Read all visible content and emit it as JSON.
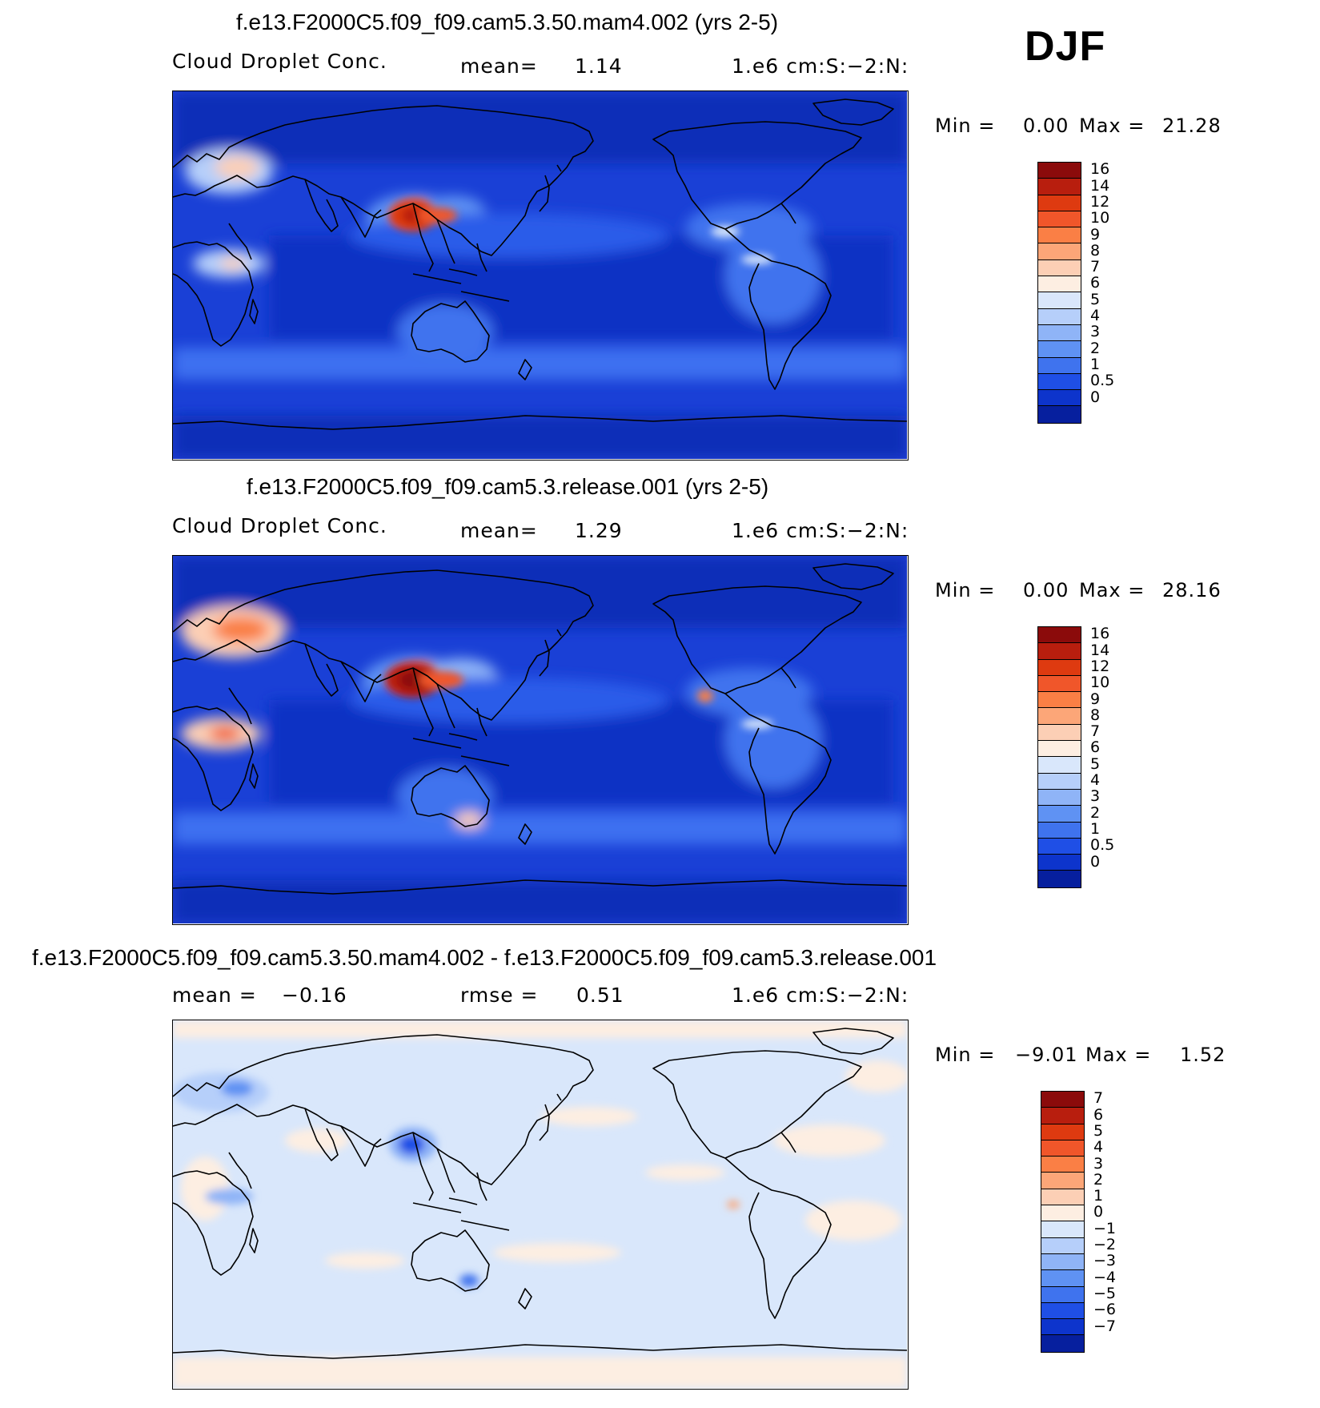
{
  "season": "DJF",
  "panels": [
    {
      "id": "p1",
      "title": "f.e13.F2000C5.f09_f09.cam5.3.50.mam4.002 (yrs 2-5)",
      "left_label": "Cloud Droplet Conc.",
      "stat_label": "mean=",
      "stat_value": "1.14",
      "units": "1.e6 cm:S:−2:N:",
      "min_label": "Min =",
      "min_value": "0.00",
      "max_label": "Max =",
      "max_value": "21.28",
      "colorbar_labels": [
        "16",
        "14",
        "12",
        "10",
        "9",
        "8",
        "7",
        "6",
        "5",
        "4",
        "3",
        "2",
        "1",
        "0.5",
        "0"
      ],
      "colorbar_colors": [
        "#8b0b0b",
        "#b81e0e",
        "#de3a10",
        "#f0562a",
        "#fa7f45",
        "#fca678",
        "#fccfb5",
        "#fdeee2",
        "#d9e7fb",
        "#b6cffa",
        "#8fb4f7",
        "#5f92f3",
        "#3f73ee",
        "#1f4fe6",
        "#0d34cc",
        "#061f9e"
      ],
      "dominant": "#1e44d8",
      "ocean_fill": "#0f36c9"
    },
    {
      "id": "p2",
      "title": "f.e13.F2000C5.f09_f09.cam5.3.release.001 (yrs 2-5)",
      "left_label": "Cloud Droplet Conc.",
      "stat_label": "mean=",
      "stat_value": "1.29",
      "units": "1.e6 cm:S:−2:N:",
      "min_label": "Min =",
      "min_value": "0.00",
      "max_label": "Max =",
      "max_value": "28.16",
      "colorbar_labels": [
        "16",
        "14",
        "12",
        "10",
        "9",
        "8",
        "7",
        "6",
        "5",
        "4",
        "3",
        "2",
        "1",
        "0.5",
        "0"
      ],
      "colorbar_colors": [
        "#8b0b0b",
        "#b81e0e",
        "#de3a10",
        "#f0562a",
        "#fa7f45",
        "#fca678",
        "#fccfb5",
        "#fdeee2",
        "#d9e7fb",
        "#b6cffa",
        "#8fb4f7",
        "#5f92f3",
        "#3f73ee",
        "#1f4fe6",
        "#0d34cc",
        "#061f9e"
      ],
      "dominant": "#1e44d8",
      "ocean_fill": "#0f36c9"
    },
    {
      "id": "p3",
      "title": "f.e13.F2000C5.f09_f09.cam5.3.50.mam4.002 - f.e13.F2000C5.f09_f09.cam5.3.release.001",
      "left_label": "mean =",
      "left_value": "−0.16",
      "stat_label": "rmse =",
      "stat_value": "0.51",
      "units": "1.e6 cm:S:−2:N:",
      "min_label": "Min =",
      "min_value": "−9.01",
      "max_label": "Max =",
      "max_value": "1.52",
      "colorbar_labels": [
        "7",
        "6",
        "5",
        "4",
        "3",
        "2",
        "1",
        "0",
        "−1",
        "−2",
        "−3",
        "−4",
        "−5",
        "−6",
        "−7"
      ],
      "colorbar_colors": [
        "#8b0b0b",
        "#b81e0e",
        "#de3a10",
        "#f0562a",
        "#fa7f45",
        "#fca678",
        "#fccfb5",
        "#fdeee2",
        "#d9e7fb",
        "#b6cffa",
        "#8fb4f7",
        "#5f92f3",
        "#3f73ee",
        "#1f4fe6",
        "#0d34cc",
        "#061f9e"
      ],
      "dominant": "#d9e7fb",
      "ocean_fill": "#d9e7fb"
    }
  ]
}
